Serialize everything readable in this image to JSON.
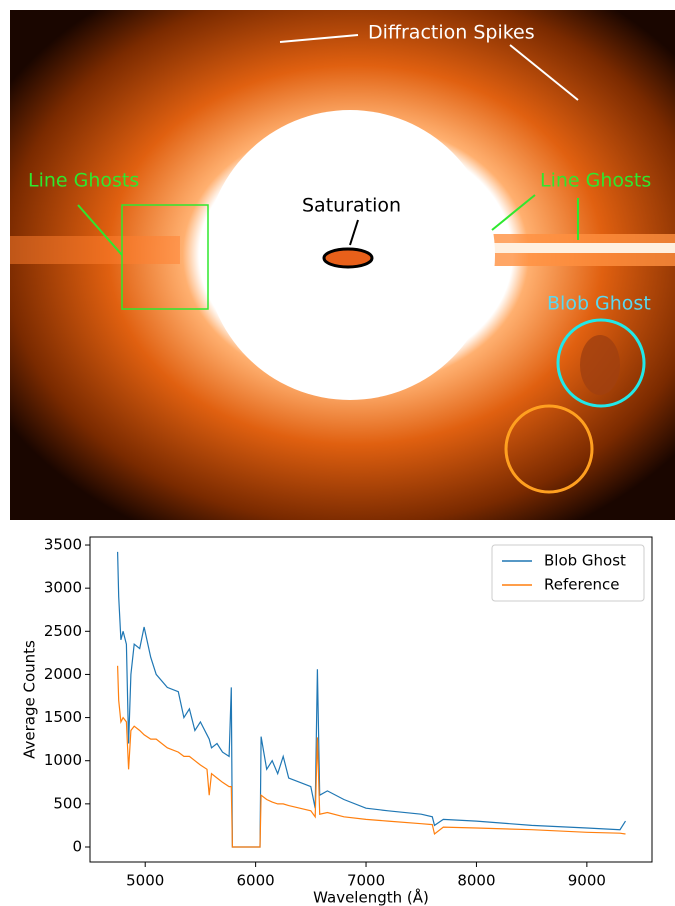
{
  "image": {
    "annotations": [
      "Diffraction Spikes",
      "Line Ghosts",
      "Line Ghosts",
      "Saturation",
      "Blob Ghost"
    ]
  },
  "chart_data": {
    "type": "line",
    "xlabel": "Wavelength (Å)",
    "ylabel": "Average Counts",
    "x": [
      4750,
      4760,
      4780,
      4800,
      4830,
      4850,
      4870,
      4900,
      4950,
      4990,
      5050,
      5100,
      5200,
      5300,
      5350,
      5400,
      5450,
      5500,
      5560,
      5580,
      5600,
      5650,
      5700,
      5760,
      5780,
      5790,
      6040,
      6050,
      6100,
      6150,
      6200,
      6250,
      6300,
      6400,
      6500,
      6540,
      6560,
      6580,
      6650,
      6800,
      7000,
      7200,
      7500,
      7600,
      7620,
      7700,
      8000,
      8500,
      9000,
      9300,
      9350
    ],
    "series": [
      {
        "name": "Blob Ghost",
        "color": "#1f77b4",
        "values": [
          3420,
          2900,
          2400,
          2500,
          2350,
          1200,
          2000,
          2350,
          2300,
          2550,
          2200,
          2000,
          1850,
          1800,
          1500,
          1600,
          1350,
          1450,
          1300,
          1250,
          1150,
          1200,
          1100,
          1050,
          1850,
          0,
          0,
          1280,
          900,
          1000,
          850,
          1050,
          800,
          750,
          700,
          450,
          2060,
          600,
          650,
          550,
          450,
          420,
          380,
          350,
          250,
          320,
          300,
          250,
          220,
          200,
          300
        ]
      },
      {
        "name": "Reference",
        "color": "#ff7f0e",
        "values": [
          2100,
          1700,
          1450,
          1500,
          1450,
          900,
          1350,
          1400,
          1350,
          1300,
          1250,
          1250,
          1150,
          1100,
          1050,
          1050,
          1000,
          950,
          900,
          600,
          850,
          800,
          750,
          700,
          700,
          0,
          0,
          600,
          550,
          520,
          500,
          500,
          480,
          450,
          420,
          350,
          1270,
          380,
          400,
          350,
          320,
          300,
          270,
          260,
          150,
          230,
          220,
          200,
          170,
          160,
          150
        ]
      }
    ],
    "xlim": [
      4500,
      9590
    ],
    "ylim": [
      -174,
      3593
    ],
    "xticks": [
      5000,
      6000,
      7000,
      8000,
      9000
    ],
    "yticks": [
      0,
      500,
      1000,
      1500,
      2000,
      2500,
      3000,
      3500
    ],
    "legend": "upper right"
  }
}
